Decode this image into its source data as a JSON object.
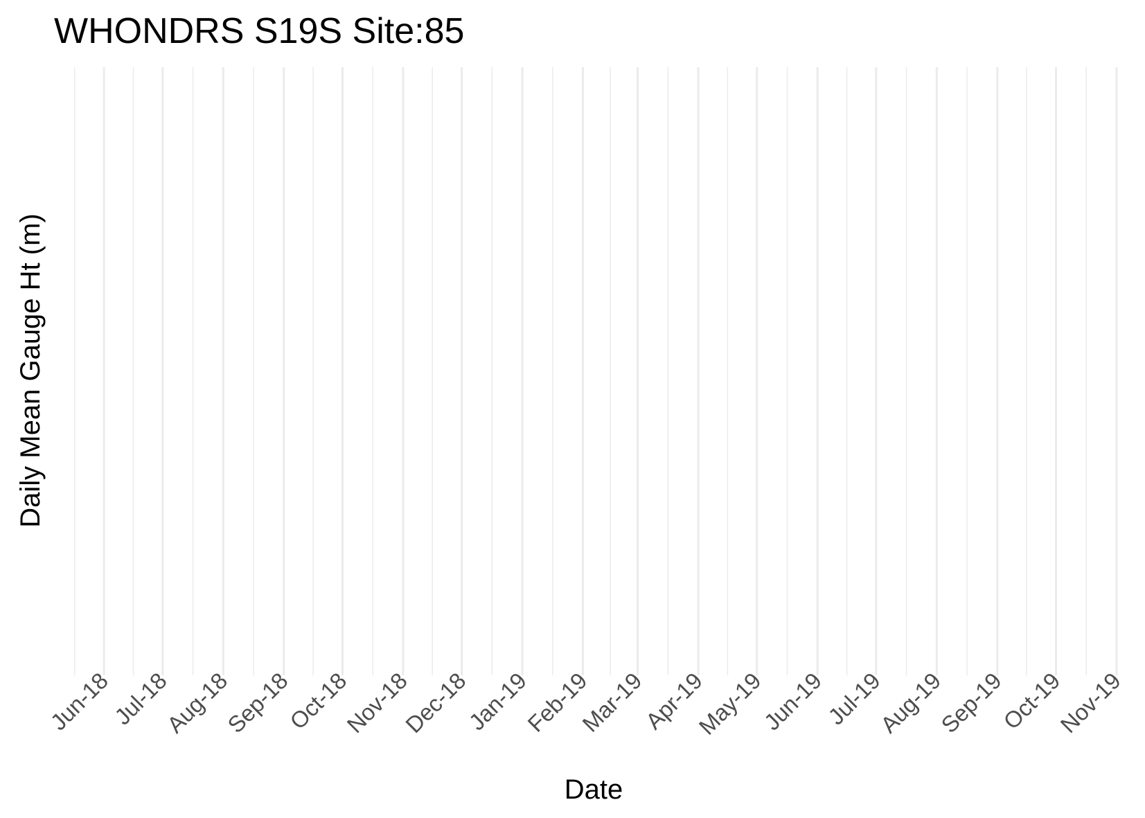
{
  "chart_data": {
    "type": "line",
    "title": "WHONDRS S19S Site:85",
    "xlabel": "Date",
    "ylabel": "Daily Mean Gauge Ht (m)",
    "x_tick_labels": [
      "Jun-18",
      "Jul-18",
      "Aug-18",
      "Sep-18",
      "Oct-18",
      "Nov-18",
      "Dec-18",
      "Jan-19",
      "Feb-19",
      "Mar-19",
      "Apr-19",
      "May-19",
      "Jun-19",
      "Jul-19",
      "Aug-19",
      "Sep-19",
      "Oct-19",
      "Nov-19"
    ],
    "x_ticks": [
      "2018-06-01",
      "2018-07-01",
      "2018-08-01",
      "2018-09-01",
      "2018-10-01",
      "2018-11-01",
      "2018-12-01",
      "2019-01-01",
      "2019-02-01",
      "2019-03-01",
      "2019-04-01",
      "2019-05-01",
      "2019-06-01",
      "2019-07-01",
      "2019-08-01",
      "2019-09-01",
      "2019-10-01",
      "2019-11-01"
    ],
    "xlim": [
      "2018-05-16",
      "2019-11-01"
    ],
    "series": [],
    "grid": true,
    "y_ticks_shown": false,
    "tick_label_rotation": 45,
    "grid_color": "#ebebeb",
    "background_color": "#ffffff"
  }
}
